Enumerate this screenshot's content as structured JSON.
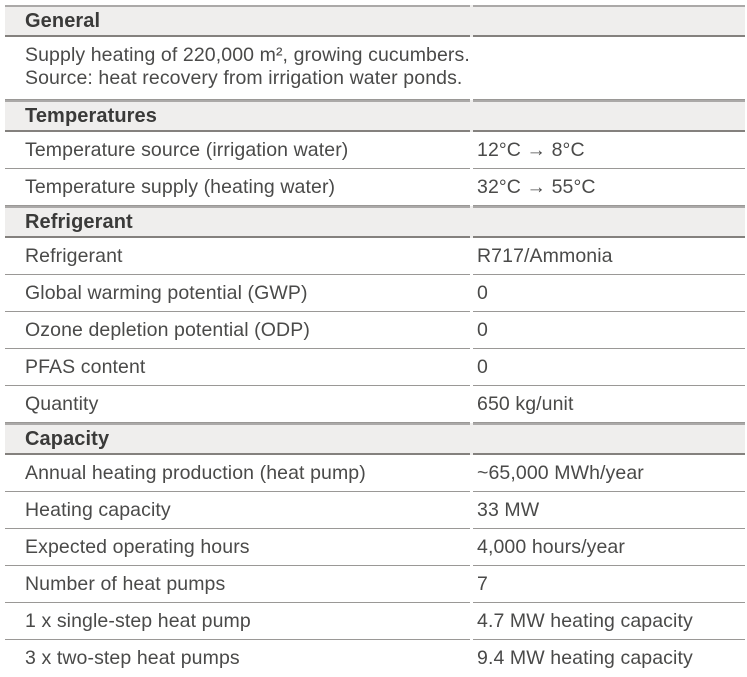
{
  "table": {
    "sections": [
      {
        "id": "general",
        "title": "General",
        "rows": [
          {
            "lines": [
              "Supply heating of 220,000 m², growing cucumbers.",
              "Source: heat recovery from irrigation water ponds."
            ]
          }
        ]
      },
      {
        "id": "temperatures",
        "title": "Temperatures",
        "rows": [
          {
            "label": "Temperature source (irrigation water)",
            "value": "12°C → 8°C"
          },
          {
            "label": "Temperature supply (heating water)",
            "value": "32°C → 55°C"
          }
        ]
      },
      {
        "id": "refrigerant",
        "title": "Refrigerant",
        "rows": [
          {
            "label": "Refrigerant",
            "value": "R717/Ammonia"
          },
          {
            "label": "Global warming potential (GWP)",
            "value": "0"
          },
          {
            "label": "Ozone depletion potential (ODP)",
            "value": "0"
          },
          {
            "label": "PFAS content",
            "value": "0"
          },
          {
            "label": "Quantity",
            "value": "650 kg/unit"
          }
        ]
      },
      {
        "id": "capacity",
        "title": "Capacity",
        "rows": [
          {
            "label": "Annual heating production (heat pump)",
            "value": "~65,000 MWh/year"
          },
          {
            "label": "Heating capacity",
            "value": "33 MW"
          },
          {
            "label": "Expected operating hours",
            "value": "4,000 hours/year"
          },
          {
            "label": "Number of heat pumps",
            "value": "7"
          },
          {
            "label": "1 x single-step heat pump",
            "value": "4.7 MW heating capacity"
          },
          {
            "label": "3 x two-step heat pumps",
            "value": "9.4 MW heating capacity"
          }
        ]
      }
    ]
  },
  "colors": {
    "header_background": "#efeeed",
    "header_border_top": "#aba9a8",
    "header_border_bottom": "#84817e",
    "row_border": "#9a9896",
    "header_text": "#3a3a39",
    "body_text": "#4a4a49",
    "page_background": "#ffffff"
  }
}
